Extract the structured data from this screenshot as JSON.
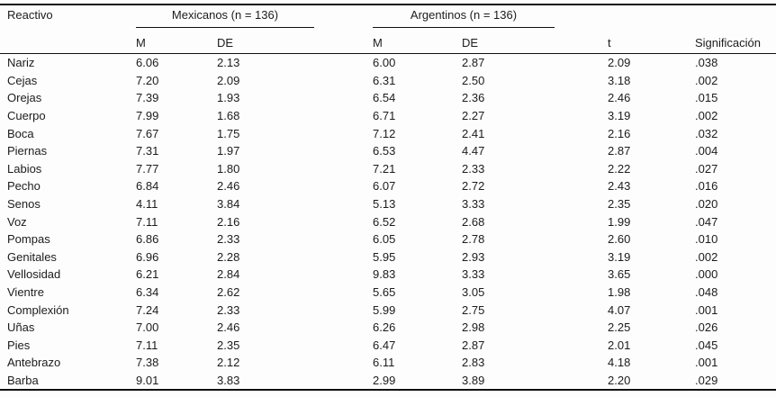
{
  "table": {
    "reactivo_header": "Reactivo",
    "groups": [
      {
        "label": "Mexicanos (n = 136)"
      },
      {
        "label": "Argentinos (n = 136)"
      }
    ],
    "subheaders": {
      "mex_m": "M",
      "mex_de": "DE",
      "arg_m": "M",
      "arg_de": "DE",
      "t": "t",
      "sig": "Significación"
    },
    "row_fields": [
      "reactivo",
      "mex_m",
      "mex_de",
      "arg_m",
      "arg_de",
      "t",
      "sig"
    ],
    "rows": [
      {
        "reactivo": "Nariz",
        "mex_m": "6.06",
        "mex_de": "2.13",
        "arg_m": "6.00",
        "arg_de": "2.87",
        "t": "2.09",
        "sig": ".038"
      },
      {
        "reactivo": "Cejas",
        "mex_m": "7.20",
        "mex_de": "2.09",
        "arg_m": "6.31",
        "arg_de": "2.50",
        "t": "3.18",
        "sig": ".002"
      },
      {
        "reactivo": "Orejas",
        "mex_m": "7.39",
        "mex_de": "1.93",
        "arg_m": "6.54",
        "arg_de": "2.36",
        "t": "2.46",
        "sig": ".015"
      },
      {
        "reactivo": "Cuerpo",
        "mex_m": "7.99",
        "mex_de": "1.68",
        "arg_m": "6.71",
        "arg_de": "2.27",
        "t": "3.19",
        "sig": ".002"
      },
      {
        "reactivo": "Boca",
        "mex_m": "7.67",
        "mex_de": "1.75",
        "arg_m": "7.12",
        "arg_de": "2.41",
        "t": "2.16",
        "sig": ".032"
      },
      {
        "reactivo": "Piernas",
        "mex_m": "7.31",
        "mex_de": "1.97",
        "arg_m": "6.53",
        "arg_de": "4.47",
        "t": "2.87",
        "sig": ".004"
      },
      {
        "reactivo": "Labios",
        "mex_m": "7.77",
        "mex_de": "1.80",
        "arg_m": "7.21",
        "arg_de": "2.33",
        "t": "2.22",
        "sig": ".027"
      },
      {
        "reactivo": "Pecho",
        "mex_m": "6.84",
        "mex_de": "2.46",
        "arg_m": "6.07",
        "arg_de": "2.72",
        "t": "2.43",
        "sig": ".016"
      },
      {
        "reactivo": "Senos",
        "mex_m": "4.11",
        "mex_de": "3.84",
        "arg_m": "5.13",
        "arg_de": "3.33",
        "t": "2.35",
        "sig": ".020"
      },
      {
        "reactivo": "Voz",
        "mex_m": "7.11",
        "mex_de": "2.16",
        "arg_m": "6.52",
        "arg_de": "2.68",
        "t": "1.99",
        "sig": ".047"
      },
      {
        "reactivo": "Pompas",
        "mex_m": "6.86",
        "mex_de": "2.33",
        "arg_m": "6.05",
        "arg_de": "2.78",
        "t": "2.60",
        "sig": ".010"
      },
      {
        "reactivo": "Genitales",
        "mex_m": "6.96",
        "mex_de": "2.28",
        "arg_m": "5.95",
        "arg_de": "2.93",
        "t": "3.19",
        "sig": ".002"
      },
      {
        "reactivo": "Vellosidad",
        "mex_m": "6.21",
        "mex_de": "2.84",
        "arg_m": "9.83",
        "arg_de": "3.33",
        "t": "3.65",
        "sig": ".000"
      },
      {
        "reactivo": "Vientre",
        "mex_m": "6.34",
        "mex_de": "2.62",
        "arg_m": "5.65",
        "arg_de": "3.05",
        "t": "1.98",
        "sig": ".048"
      },
      {
        "reactivo": "Complexión",
        "mex_m": "7.24",
        "mex_de": "2.33",
        "arg_m": "5.99",
        "arg_de": "2.75",
        "t": "4.07",
        "sig": ".001"
      },
      {
        "reactivo": "Uñas",
        "mex_m": "7.00",
        "mex_de": "2.46",
        "arg_m": "6.26",
        "arg_de": "2.98",
        "t": "2.25",
        "sig": ".026"
      },
      {
        "reactivo": "Pies",
        "mex_m": "7.11",
        "mex_de": "2.35",
        "arg_m": "6.47",
        "arg_de": "2.87",
        "t": "2.01",
        "sig": ".045"
      },
      {
        "reactivo": "Antebrazo",
        "mex_m": "7.38",
        "mex_de": "2.12",
        "arg_m": "6.11",
        "arg_de": "2.83",
        "t": "4.18",
        "sig": ".001"
      },
      {
        "reactivo": "Barba",
        "mex_m": "9.01",
        "mex_de": "3.83",
        "arg_m": "2.99",
        "arg_de": "3.89",
        "t": "2.20",
        "sig": ".029"
      }
    ]
  },
  "colors": {
    "text": "#1c1c1c",
    "rule": "#111111",
    "background": "#fdfdfd"
  }
}
